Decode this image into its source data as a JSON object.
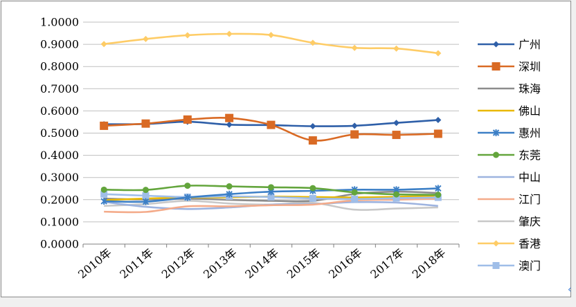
{
  "chart_data": {
    "type": "line",
    "title": "",
    "xlabel": "",
    "ylabel": "",
    "categories": [
      "2010年",
      "2011年",
      "2012年",
      "2013年",
      "2014年",
      "2015年",
      "2016年",
      "2017年",
      "2018年"
    ],
    "ylim": [
      0,
      1
    ],
    "yticks": [
      "0.0000",
      "0.1000",
      "0.2000",
      "0.3000",
      "0.4000",
      "0.5000",
      "0.6000",
      "0.7000",
      "0.8000",
      "0.9000",
      "1.0000"
    ],
    "grid": true,
    "legend_position": "right",
    "series": [
      {
        "name": "广州",
        "color": "#2e5fa8",
        "marker": "diamond",
        "values": [
          0.54,
          0.541,
          0.551,
          0.538,
          0.536,
          0.531,
          0.533,
          0.546,
          0.559
        ]
      },
      {
        "name": "深圳",
        "color": "#d96a24",
        "marker": "square",
        "values": [
          0.533,
          0.543,
          0.561,
          0.568,
          0.537,
          0.467,
          0.494,
          0.492,
          0.497
        ]
      },
      {
        "name": "珠海",
        "color": "#8c8c8c",
        "marker": "none",
        "values": [
          0.205,
          0.201,
          0.205,
          0.199,
          0.195,
          0.195,
          0.226,
          0.236,
          0.23
        ]
      },
      {
        "name": "佛山",
        "color": "#e9b800",
        "marker": "none",
        "values": [
          0.198,
          0.205,
          0.21,
          0.211,
          0.214,
          0.212,
          0.21,
          0.213,
          0.218
        ]
      },
      {
        "name": "惠州",
        "color": "#3c7fc6",
        "marker": "asterisk",
        "values": [
          0.193,
          0.191,
          0.21,
          0.225,
          0.236,
          0.24,
          0.245,
          0.245,
          0.251
        ]
      },
      {
        "name": "东莞",
        "color": "#63a53c",
        "marker": "circle",
        "values": [
          0.245,
          0.244,
          0.263,
          0.26,
          0.256,
          0.252,
          0.233,
          0.224,
          0.222
        ]
      },
      {
        "name": "中山",
        "color": "#9db3df",
        "marker": "none",
        "values": [
          0.19,
          0.168,
          0.158,
          0.165,
          0.178,
          0.18,
          0.189,
          0.187,
          0.172
        ]
      },
      {
        "name": "江门",
        "color": "#f4ab8a",
        "marker": "none",
        "values": [
          0.146,
          0.145,
          0.17,
          0.17,
          0.175,
          0.178,
          0.197,
          0.2,
          0.205
        ]
      },
      {
        "name": "肇庆",
        "color": "#c8c8c8",
        "marker": "none",
        "values": [
          0.172,
          0.18,
          0.195,
          0.183,
          0.178,
          0.186,
          0.155,
          0.16,
          0.165
        ]
      },
      {
        "name": "香港",
        "color": "#fecc66",
        "marker": "diamond",
        "values": [
          0.901,
          0.924,
          0.941,
          0.947,
          0.942,
          0.907,
          0.884,
          0.881,
          0.86
        ]
      },
      {
        "name": "澳门",
        "color": "#9fbee8",
        "marker": "square",
        "values": [
          0.225,
          0.218,
          0.212,
          0.215,
          0.212,
          0.206,
          0.203,
          0.207,
          0.21
        ]
      }
    ]
  },
  "corner_icon": "chevron-left-icon"
}
